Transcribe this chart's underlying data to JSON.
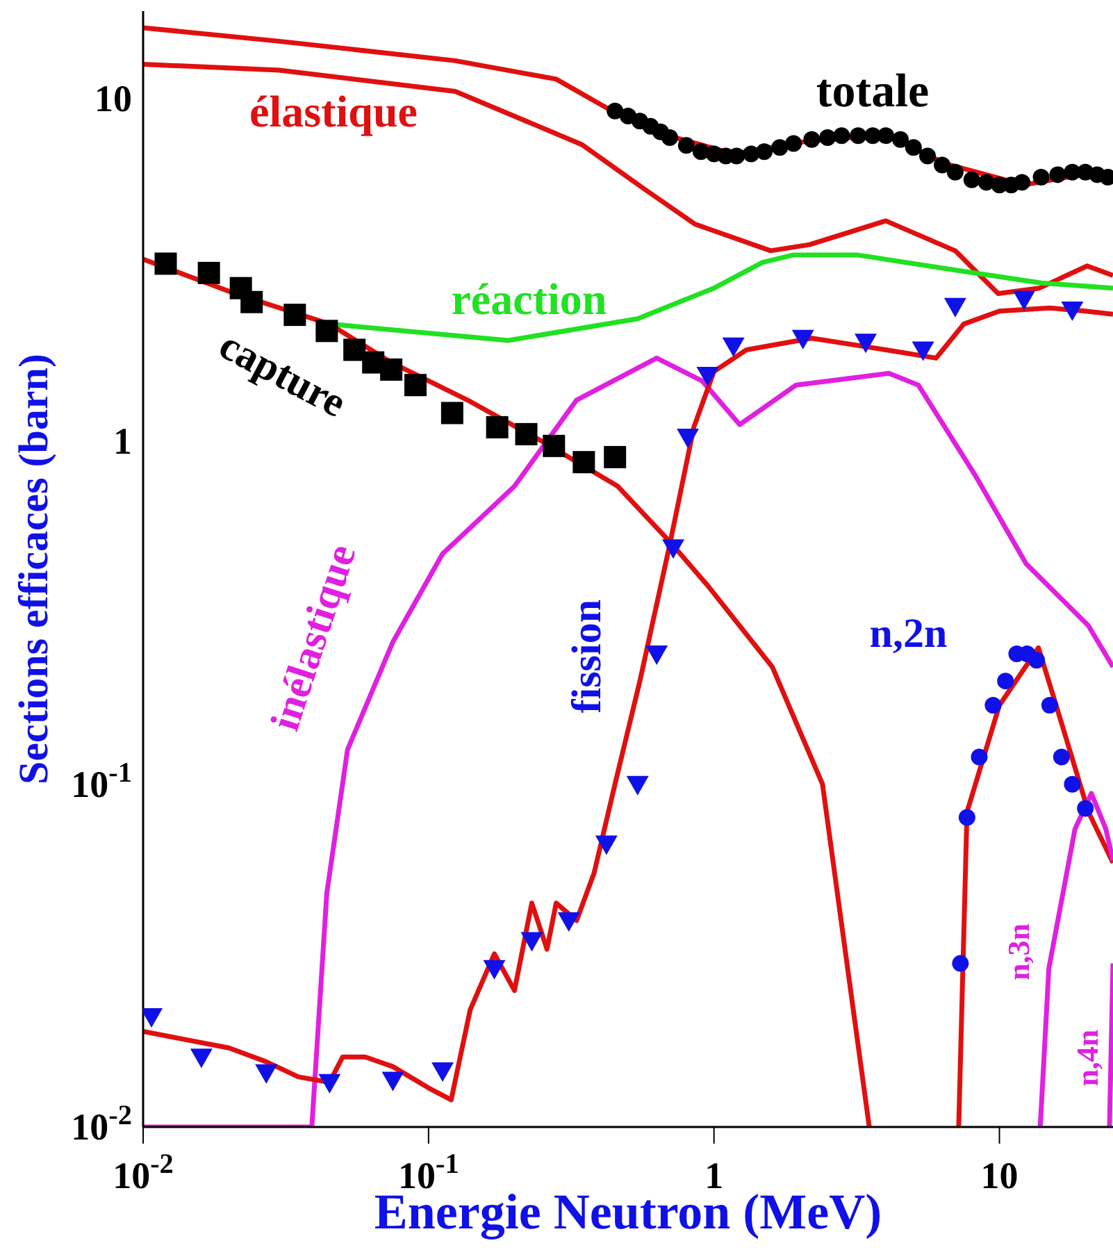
{
  "chart_data": {
    "type": "line",
    "log": "xy",
    "xlabel": "Energie Neutron (MeV)",
    "ylabel": "Sections efficaces (barn)",
    "xlim": [
      0.01,
      25
    ],
    "ylim": [
      0.01,
      18
    ],
    "xticks": [
      {
        "value": 0.01,
        "label": "10$^{-2}$"
      },
      {
        "value": 0.1,
        "label": "10$^{-1}$"
      },
      1,
      10
    ],
    "yticks": [
      {
        "value": 0.01,
        "label": "10$^{-2}$"
      },
      {
        "value": 0.1,
        "label": "10$^{-1}$"
      },
      1,
      10
    ],
    "series": [
      {
        "name": "totale",
        "type": "scatter",
        "marker": "circle",
        "color": "#000000",
        "x": [
          0.45,
          0.5,
          0.55,
          0.6,
          0.65,
          0.7,
          0.8,
          0.9,
          1.0,
          1.1,
          1.2,
          1.35,
          1.5,
          1.7,
          1.9,
          2.2,
          2.5,
          2.8,
          3.2,
          3.6,
          4.0,
          4.5,
          5,
          5.6,
          6.3,
          7,
          8,
          9,
          10,
          11,
          12,
          14,
          16,
          18,
          20,
          22,
          24
        ],
        "values": [
          9.2,
          8.9,
          8.6,
          8.3,
          8.0,
          7.7,
          7.3,
          7.0,
          6.9,
          6.8,
          6.8,
          6.9,
          7.0,
          7.2,
          7.4,
          7.6,
          7.7,
          7.8,
          7.8,
          7.8,
          7.8,
          7.6,
          7.2,
          6.8,
          6.4,
          6.1,
          5.8,
          5.7,
          5.6,
          5.6,
          5.7,
          5.9,
          6.0,
          6.1,
          6.1,
          6.0,
          5.9
        ]
      },
      {
        "color": "#e01010",
        "x": [
          0.01,
          0.03,
          0.124,
          0.28,
          0.43,
          0.69,
          1.17,
          2.1,
          4,
          6.5,
          12.2,
          21.5,
          25
        ],
        "values": [
          16.1,
          14.7,
          12.9,
          11.4,
          9.3,
          7.8,
          6.9,
          7.5,
          7.85,
          6.45,
          5.6,
          6.1,
          5.8
        ]
      },
      {
        "name": "élastique",
        "color": "#e01010",
        "x": [
          0.01,
          0.03,
          0.124,
          0.344,
          0.57,
          0.86,
          1.58,
          2.16,
          4.0,
          7.0,
          9.9,
          13.8,
          20.3,
          25
        ],
        "values": [
          12.6,
          12.1,
          10.5,
          7.35,
          5.45,
          4.3,
          3.6,
          3.75,
          4.4,
          3.6,
          2.7,
          2.8,
          3.25,
          3.05
        ]
      },
      {
        "name": "réaction",
        "color": "#22e022",
        "x": [
          0.045,
          0.19,
          0.54,
          1.0,
          1.48,
          1.9,
          3.17,
          6.7,
          14,
          25
        ],
        "values": [
          2.2,
          1.97,
          2.28,
          2.8,
          3.33,
          3.5,
          3.5,
          3.18,
          2.9,
          2.8
        ]
      },
      {
        "name": "capture",
        "type": "scatter",
        "marker": "square",
        "color": "#000000",
        "x": [
          0.012,
          0.017,
          0.022,
          0.024,
          0.034,
          0.044,
          0.055,
          0.064,
          0.074,
          0.09,
          0.121,
          0.174,
          0.22,
          0.275,
          0.35,
          0.45
        ],
        "values": [
          3.3,
          3.1,
          2.8,
          2.55,
          2.34,
          2.1,
          1.85,
          1.7,
          1.62,
          1.46,
          1.21,
          1.1,
          1.05,
          0.97,
          0.87,
          0.9
        ]
      },
      {
        "color": "#e01010",
        "x": [
          0.01,
          0.021,
          0.045,
          0.074,
          0.137,
          0.25,
          0.46,
          0.7,
          0.95,
          1.6,
          2.4,
          3.5
        ],
        "values": [
          3.4,
          2.7,
          2.2,
          1.7,
          1.32,
          1.0,
          0.74,
          0.51,
          0.38,
          0.22,
          0.1,
          0.01
        ]
      },
      {
        "name": "inélastique",
        "color": "#e020e0",
        "x": [
          0.01,
          0.039,
          0.044,
          0.052,
          0.075,
          0.112,
          0.2,
          0.33,
          0.63,
          0.91,
          1.23,
          1.94,
          4.1,
          5.2,
          8.2,
          12.4,
          20.5,
          25
        ],
        "values": [
          0.01,
          0.01,
          0.048,
          0.126,
          0.26,
          0.47,
          0.74,
          1.32,
          1.75,
          1.5,
          1.12,
          1.46,
          1.58,
          1.46,
          0.8,
          0.44,
          0.29,
          0.22
        ]
      },
      {
        "name": "fission",
        "type": "scatter",
        "marker": "triangle",
        "color": "#1010e8",
        "x": [
          0.0107,
          0.016,
          0.027,
          0.045,
          0.075,
          0.112,
          0.17,
          0.23,
          0.31,
          0.42,
          0.54,
          0.63,
          0.72,
          0.81,
          0.95,
          1.17,
          2.05,
          3.4,
          5.4,
          7,
          12.2,
          18
        ],
        "values": [
          0.021,
          0.016,
          0.0144,
          0.0135,
          0.0137,
          0.0146,
          0.029,
          0.035,
          0.04,
          0.067,
          0.1,
          0.24,
          0.49,
          1.03,
          1.56,
          1.9,
          2.0,
          1.95,
          1.85,
          2.48,
          2.6,
          2.42
        ]
      },
      {
        "color": "#e01010",
        "x": [
          0.01,
          0.02,
          0.027,
          0.035,
          0.045,
          0.05,
          0.06,
          0.075,
          0.1,
          0.12,
          0.14,
          0.17,
          0.2,
          0.23,
          0.26,
          0.28,
          0.33,
          0.38,
          0.45,
          0.55,
          0.7,
          0.85,
          1.0,
          1.3,
          2.2,
          4,
          6,
          7.5,
          10,
          15,
          20,
          25
        ],
        "values": [
          0.019,
          0.017,
          0.0155,
          0.014,
          0.0135,
          0.016,
          0.016,
          0.015,
          0.013,
          0.012,
          0.022,
          0.032,
          0.025,
          0.045,
          0.033,
          0.045,
          0.04,
          0.055,
          0.1,
          0.2,
          0.5,
          1.1,
          1.6,
          1.85,
          2.0,
          1.85,
          1.75,
          2.2,
          2.4,
          2.45,
          2.4,
          2.35
        ]
      },
      {
        "name": "n,2n",
        "type": "scatter",
        "marker": "circle",
        "color": "#1010e8",
        "x": [
          7.3,
          7.7,
          8.5,
          9.5,
          10.5,
          11.5,
          12.5,
          13.5,
          15,
          16.5,
          18,
          20
        ],
        "values": [
          0.03,
          0.08,
          0.12,
          0.17,
          0.2,
          0.24,
          0.24,
          0.23,
          0.17,
          0.12,
          0.1,
          0.085
        ]
      },
      {
        "color": "#e01010",
        "x": [
          7.2,
          7.7,
          10,
          13.7,
          15.8,
          20.5,
          25
        ],
        "values": [
          0.01,
          0.083,
          0.17,
          0.25,
          0.17,
          0.083,
          0.059
        ]
      },
      {
        "name": "n,3n",
        "color": "#e020e0",
        "x": [
          13.9,
          14.9,
          18.4,
          21,
          23.6,
          25
        ],
        "values": [
          0.01,
          0.029,
          0.074,
          0.094,
          0.074,
          0.06
        ]
      },
      {
        "name": "n,4n",
        "color": "#e020e0",
        "x": [
          24.3,
          25
        ],
        "values": [
          0.01,
          0.03
        ]
      }
    ]
  }
}
